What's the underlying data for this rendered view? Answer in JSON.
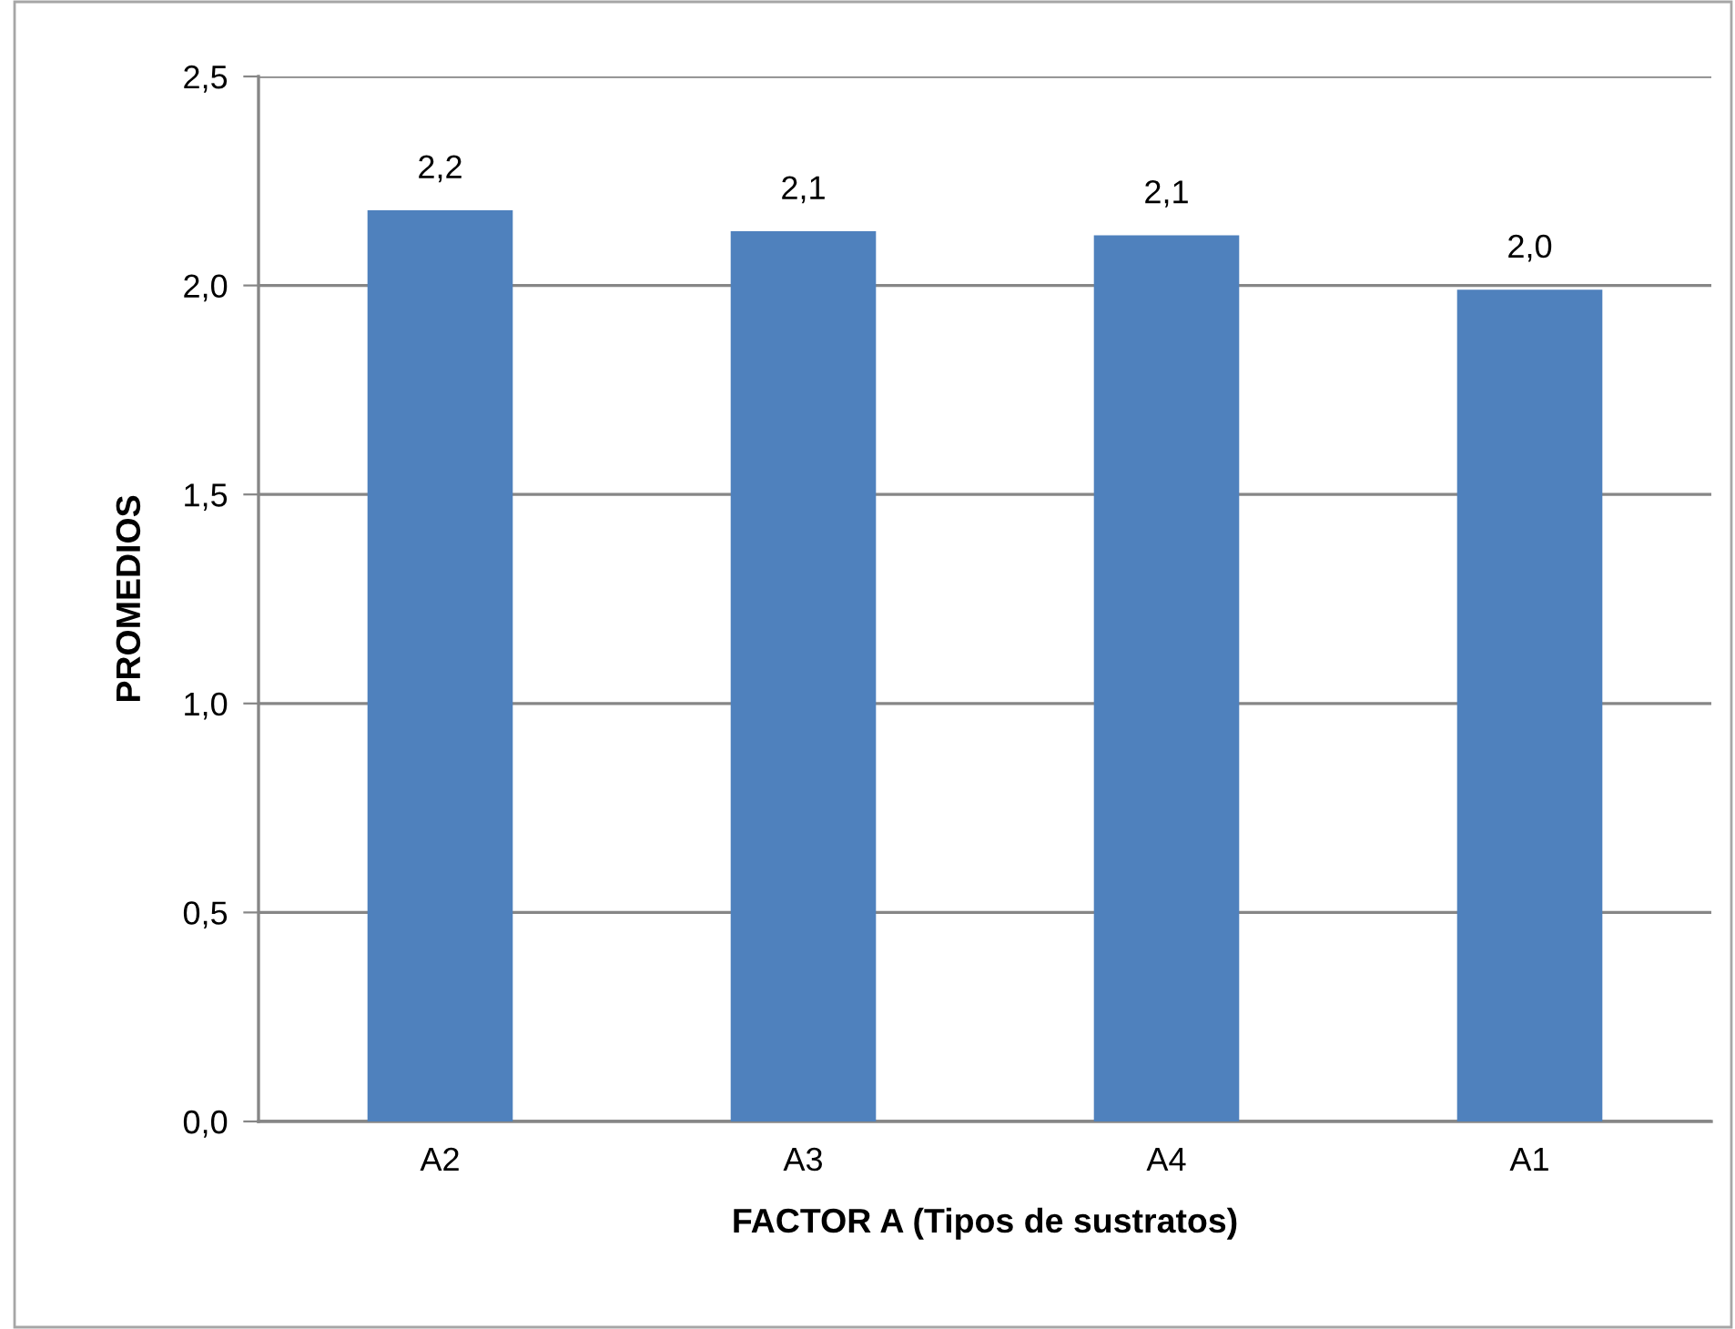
{
  "chart_data": {
    "type": "bar",
    "xlabel": "FACTOR A (Tipos de sustratos)",
    "ylabel": "PROMEDIOS",
    "categories": [
      "A2",
      "A3",
      "A4",
      "A1"
    ],
    "series": [
      {
        "color": "#4f81bd",
        "values": [
          2.18,
          2.13,
          2.12,
          1.99
        ],
        "value_labels": [
          "2,2",
          "2,1",
          "2,1",
          "2,0"
        ]
      }
    ],
    "ylim": [
      0,
      2.5
    ],
    "yticks": [
      {
        "value": 0,
        "label": "0,0"
      },
      {
        "value": 0.5,
        "label": "0,5"
      },
      {
        "value": 1.0,
        "label": "1,0"
      },
      {
        "value": 1.5,
        "label": "1,5"
      },
      {
        "value": 2.0,
        "label": "2,0"
      },
      {
        "value": 2.5,
        "label": "2,5"
      }
    ],
    "grid": "y",
    "legend": false
  }
}
